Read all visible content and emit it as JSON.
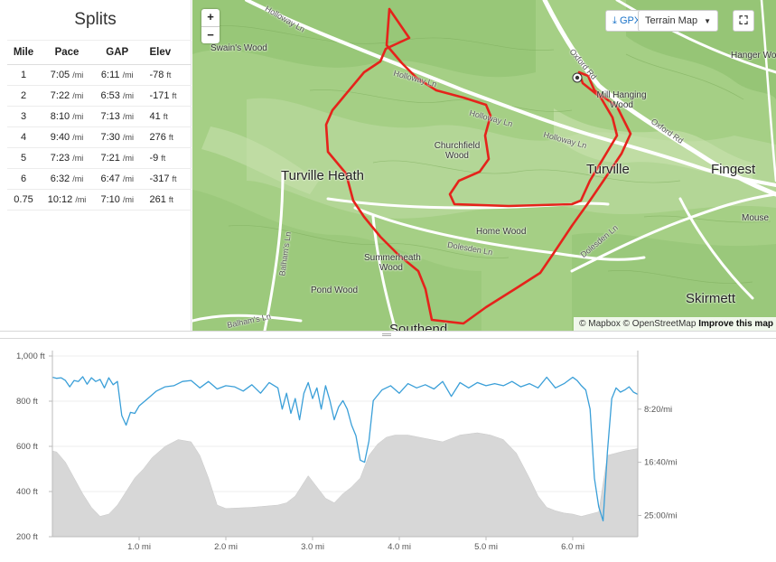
{
  "splits": {
    "title": "Splits",
    "headers": {
      "mile": "Mile",
      "pace": "Pace",
      "gap": "GAP",
      "elev": "Elev"
    },
    "pace_unit": "/mi",
    "elev_unit": "ft",
    "rows": [
      {
        "mile": "1",
        "pace": "7:05",
        "gap": "6:11",
        "elev": "-78"
      },
      {
        "mile": "2",
        "pace": "7:22",
        "gap": "6:53",
        "elev": "-171"
      },
      {
        "mile": "3",
        "pace": "8:10",
        "gap": "7:13",
        "elev": "41"
      },
      {
        "mile": "4",
        "pace": "9:40",
        "gap": "7:30",
        "elev": "276"
      },
      {
        "mile": "5",
        "pace": "7:23",
        "gap": "7:21",
        "elev": "-9"
      },
      {
        "mile": "6",
        "pace": "6:32",
        "gap": "6:47",
        "elev": "-317"
      },
      {
        "mile": "0.75",
        "pace": "10:12",
        "gap": "7:10",
        "elev": "261"
      }
    ]
  },
  "map": {
    "zoom_in": "+",
    "zoom_out": "−",
    "gpx_label": "GPX",
    "terrain_label": "Terrain Map",
    "fullscreen_icon": "expand-icon",
    "attribution_mapbox": "© Mapbox",
    "attribution_osm": "© OpenStreetMap",
    "attribution_improve": "Improve this map",
    "route_color": "#e5231b",
    "labels": {
      "swains_wood": "Swain's Wood",
      "holloway_top": "Holloway Ln",
      "holloway_mid": "Holloway Ln",
      "holloway_center": "Holloway Ln",
      "holloway_right": "Holloway Ln",
      "oxford_rd_top": "Oxford Rd",
      "oxford_rd_right": "Oxford Rd",
      "mill_hanging_wood": "Mill Hanging Wood",
      "hanger_wood": "Hanger Wo",
      "churchfield_wood": "Churchfield Wood",
      "turville_heath": "Turville Heath",
      "turville": "Turville",
      "fingest": "Fingest",
      "home_wood": "Home Wood",
      "summerheath_wood": "Summerheath Wood",
      "dolesden_ln": "Dolesden Ln",
      "dolesden_ln_right": "Dolesden Ln",
      "balhams_ln": "Balham's Ln",
      "balhams_ln_bottom": "Balham's Ln",
      "pond_wood": "Pond Wood",
      "skirmett": "Skirmett",
      "mouse": "Mouse",
      "southend": "Southend"
    }
  },
  "chart_data": {
    "type": "area",
    "x_ticks": [
      "1.0 mi",
      "2.0 mi",
      "3.0 mi",
      "4.0 mi",
      "5.0 mi",
      "6.0 mi"
    ],
    "x_tick_values": [
      1,
      2,
      3,
      4,
      5,
      6
    ],
    "xlim": [
      0,
      6.75
    ],
    "y_left_ticks": [
      "1,000 ft",
      "800 ft",
      "600 ft",
      "400 ft",
      "200 ft"
    ],
    "y_left_values": [
      1000,
      800,
      600,
      400,
      200
    ],
    "ylim_left": [
      200,
      1000
    ],
    "y_right_ticks": [
      "8:20/mi",
      "16:40/mi",
      "25:00/mi"
    ],
    "y_right_values": [
      500,
      1000,
      1500
    ],
    "ylim_right": [
      0,
      1700
    ],
    "elevation_color": "#d7d7d7",
    "pace_color": "#3a9fd8",
    "series": [
      {
        "kind": "elevation",
        "x": [
          0,
          0.05,
          0.15,
          0.25,
          0.35,
          0.45,
          0.55,
          0.65,
          0.75,
          0.85,
          0.95,
          1.05,
          1.15,
          1.3,
          1.45,
          1.6,
          1.7,
          1.8,
          1.85,
          1.9,
          2.0,
          2.3,
          2.6,
          2.7,
          2.8,
          2.9,
          2.95,
          3.05,
          3.15,
          3.25,
          3.35,
          3.45,
          3.55,
          3.65,
          3.75,
          3.85,
          3.95,
          4.1,
          4.3,
          4.5,
          4.7,
          4.9,
          5.05,
          5.2,
          5.35,
          5.5,
          5.6,
          5.7,
          5.8,
          5.9,
          6.0,
          6.1,
          6.2,
          6.3,
          6.4,
          6.5,
          6.6,
          6.75
        ],
        "y": [
          580,
          575,
          530,
          460,
          390,
          330,
          290,
          300,
          340,
          400,
          460,
          500,
          550,
          600,
          630,
          620,
          560,
          460,
          400,
          340,
          325,
          330,
          340,
          350,
          380,
          440,
          470,
          420,
          370,
          350,
          390,
          420,
          460,
          560,
          610,
          640,
          650,
          650,
          635,
          620,
          650,
          660,
          650,
          630,
          570,
          460,
          380,
          330,
          315,
          305,
          300,
          290,
          300,
          310,
          560,
          570,
          580,
          590
        ]
      },
      {
        "kind": "pace",
        "x": [
          0,
          0.05,
          0.1,
          0.15,
          0.2,
          0.25,
          0.3,
          0.35,
          0.4,
          0.45,
          0.5,
          0.55,
          0.6,
          0.65,
          0.7,
          0.75,
          0.8,
          0.85,
          0.9,
          0.95,
          1.0,
          1.1,
          1.2,
          1.3,
          1.4,
          1.5,
          1.6,
          1.7,
          1.8,
          1.9,
          2.0,
          2.1,
          2.2,
          2.3,
          2.4,
          2.5,
          2.6,
          2.65,
          2.7,
          2.75,
          2.8,
          2.85,
          2.9,
          2.95,
          3.0,
          3.05,
          3.1,
          3.15,
          3.2,
          3.25,
          3.3,
          3.35,
          3.4,
          3.45,
          3.5,
          3.55,
          3.6,
          3.65,
          3.7,
          3.8,
          3.9,
          4.0,
          4.1,
          4.2,
          4.3,
          4.4,
          4.5,
          4.6,
          4.7,
          4.8,
          4.9,
          5.0,
          5.1,
          5.2,
          5.3,
          5.4,
          5.5,
          5.6,
          5.7,
          5.8,
          5.9,
          6.0,
          6.05,
          6.1,
          6.15,
          6.2,
          6.25,
          6.3,
          6.35,
          6.4,
          6.45,
          6.5,
          6.55,
          6.6,
          6.65,
          6.7,
          6.75
        ],
        "y": [
          200,
          210,
          205,
          230,
          290,
          230,
          240,
          195,
          265,
          205,
          240,
          220,
          300,
          205,
          270,
          240,
          560,
          650,
          530,
          540,
          470,
          400,
          330,
          290,
          280,
          240,
          230,
          300,
          240,
          310,
          280,
          290,
          330,
          270,
          350,
          250,
          300,
          500,
          350,
          540,
          400,
          600,
          350,
          250,
          400,
          300,
          500,
          280,
          420,
          600,
          480,
          420,
          500,
          650,
          750,
          980,
          1000,
          800,
          420,
          320,
          280,
          350,
          260,
          300,
          270,
          310,
          240,
          380,
          250,
          300,
          250,
          280,
          260,
          280,
          240,
          290,
          260,
          300,
          200,
          300,
          260,
          200,
          230,
          280,
          320,
          500,
          1150,
          1420,
          1550,
          900,
          400,
          300,
          340,
          320,
          290,
          340,
          360
        ]
      }
    ]
  }
}
